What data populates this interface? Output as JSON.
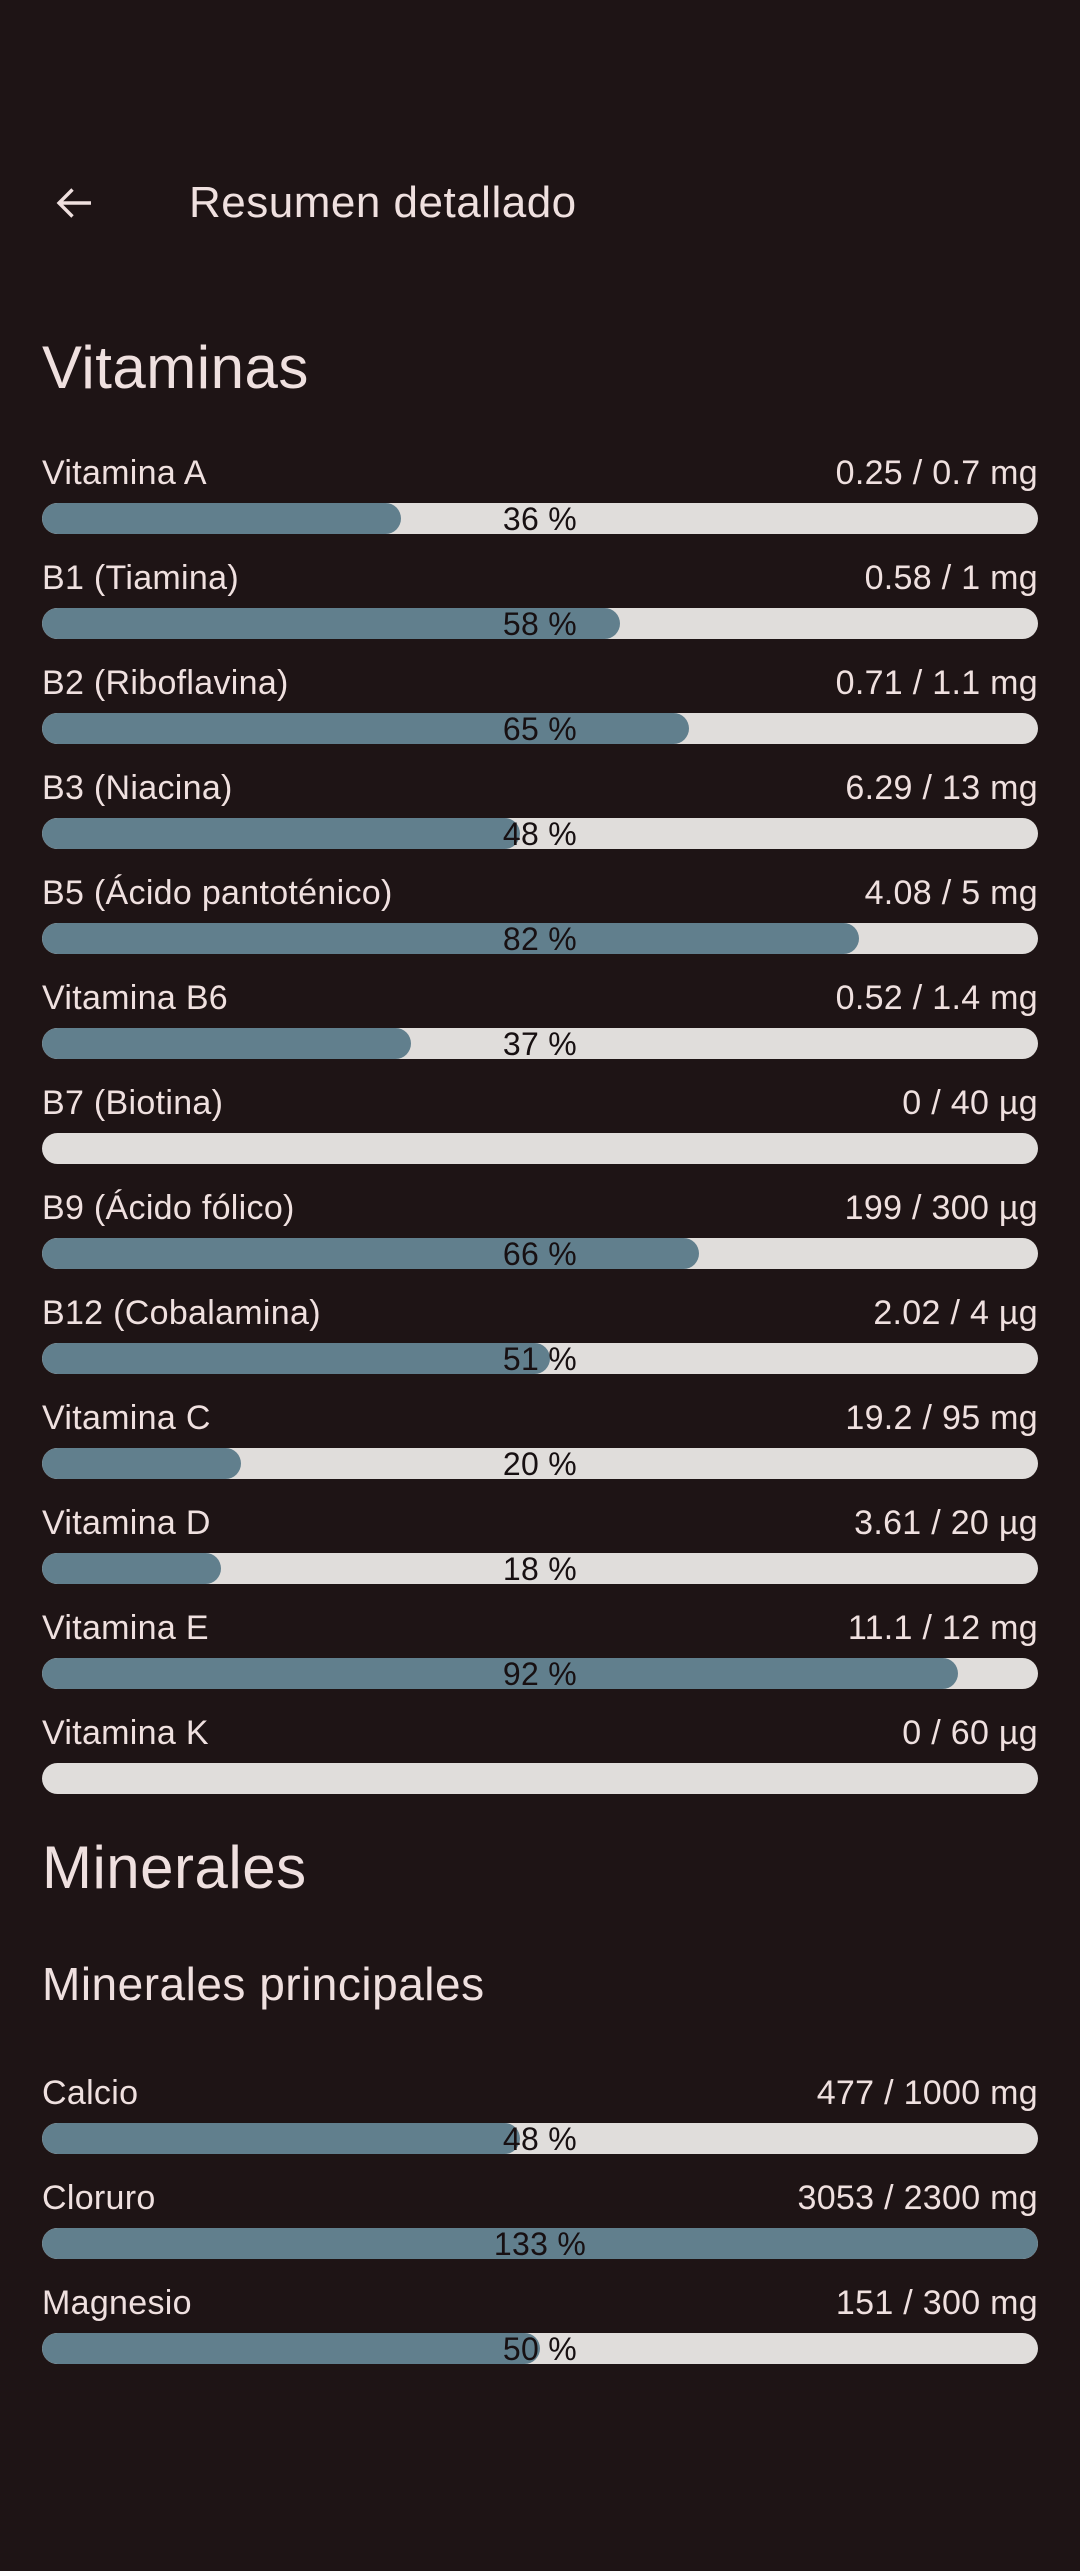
{
  "colors": {
    "background": "#1E1415",
    "text": "#EFE0DF",
    "bar_fill": "#617F8D",
    "bar_track": "#E0DDDB",
    "percent_text": "#171012"
  },
  "header": {
    "back_icon": "arrow-left",
    "title": "Resumen detallado"
  },
  "sections": {
    "vitamins": {
      "title": "Vitaminas",
      "items": [
        {
          "name": "Vitamina A",
          "value": "0.25 / 0.7 mg",
          "percent": 36,
          "percent_label": "36 %"
        },
        {
          "name": "B1 (Tiamina)",
          "value": "0.58 / 1 mg",
          "percent": 58,
          "percent_label": "58 %"
        },
        {
          "name": "B2 (Riboflavina)",
          "value": "0.71 / 1.1 mg",
          "percent": 65,
          "percent_label": "65 %"
        },
        {
          "name": "B3 (Niacina)",
          "value": "6.29 / 13 mg",
          "percent": 48,
          "percent_label": "48 %"
        },
        {
          "name": "B5 (Ácido pantoténico)",
          "value": "4.08 / 5 mg",
          "percent": 82,
          "percent_label": "82 %"
        },
        {
          "name": "Vitamina B6",
          "value": "0.52 / 1.4 mg",
          "percent": 37,
          "percent_label": "37 %"
        },
        {
          "name": "B7 (Biotina)",
          "value": "0 / 40 µg",
          "percent": 0,
          "percent_label": ""
        },
        {
          "name": "B9 (Ácido fólico)",
          "value": "199 / 300 µg",
          "percent": 66,
          "percent_label": "66 %"
        },
        {
          "name": "B12 (Cobalamina)",
          "value": "2.02 / 4 µg",
          "percent": 51,
          "percent_label": "51 %"
        },
        {
          "name": "Vitamina C",
          "value": "19.2 / 95 mg",
          "percent": 20,
          "percent_label": "20 %"
        },
        {
          "name": "Vitamina D",
          "value": "3.61 / 20 µg",
          "percent": 18,
          "percent_label": "18 %"
        },
        {
          "name": "Vitamina E",
          "value": "11.1 / 12 mg",
          "percent": 92,
          "percent_label": "92 %"
        },
        {
          "name": "Vitamina K",
          "value": "0 / 60 µg",
          "percent": 0,
          "percent_label": ""
        }
      ]
    },
    "minerals": {
      "title": "Minerales",
      "subtitle": "Minerales principales",
      "items": [
        {
          "name": "Calcio",
          "value": "477 / 1000 mg",
          "percent": 48,
          "percent_label": "48 %"
        },
        {
          "name": "Cloruro",
          "value": "3053 / 2300 mg",
          "percent": 133,
          "percent_label": "133 %"
        },
        {
          "name": "Magnesio",
          "value": "151 / 300 mg",
          "percent": 50,
          "percent_label": "50 %"
        }
      ]
    }
  }
}
